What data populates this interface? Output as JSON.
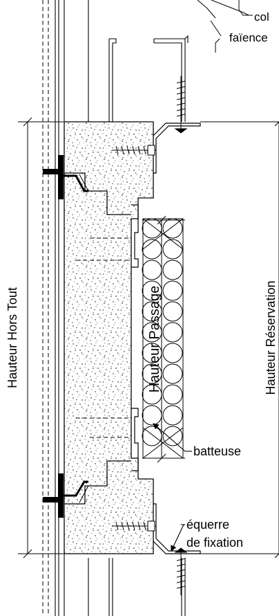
{
  "labels": {
    "top_colle_fragment": "col",
    "top_faience_fragment": "faïence",
    "hauteur_hors_tout": "Hauteur Hors Tout",
    "hauteur_passage": "Hauteur Passage",
    "hauteur_reservation": "Hauteur Réservation",
    "batteuse": "batteuse",
    "equerre_line1": "équerre",
    "equerre_line2": "de fixation"
  },
  "colors": {
    "line": "#000000",
    "background": "#ffffff",
    "concrete_dot": "#000000"
  }
}
